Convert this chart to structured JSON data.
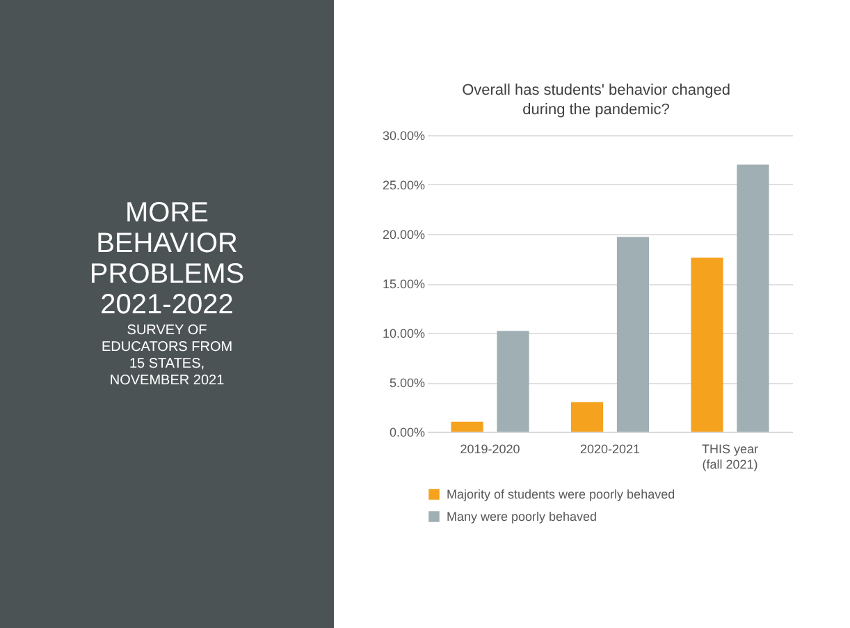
{
  "chart_data": {
    "type": "bar",
    "title": "Overall has students' behavior changed during the pandemic?",
    "categories": [
      "2019-2020",
      "2020-2021",
      "THIS year (fall 2021)"
    ],
    "series": [
      {
        "name": "Majority of students were poorly behaved",
        "color": "#f5a21f",
        "values": [
          1.0,
          3.0,
          17.6
        ]
      },
      {
        "name": "Many were poorly behaved",
        "color": "#9fafb3",
        "values": [
          10.2,
          19.7,
          27.0
        ]
      }
    ],
    "ylim": [
      0,
      30
    ],
    "yticks": [
      {
        "value": 0,
        "label": "0.00%"
      },
      {
        "value": 5,
        "label": "5.00%"
      },
      {
        "value": 10,
        "label": "10.00%"
      },
      {
        "value": 15,
        "label": "15.00%"
      },
      {
        "value": 20,
        "label": "20.00%"
      },
      {
        "value": 25,
        "label": "25.00%"
      },
      {
        "value": 30,
        "label": "30.00%"
      }
    ],
    "grid": "y",
    "legend": "bottom",
    "annotations": [
      "MORE BEHAVIOR PROBLEMS 2021-2022",
      "SURVEY OF EDUCATORS FROM 15 STATES, NOVEMBER 2021"
    ]
  }
}
